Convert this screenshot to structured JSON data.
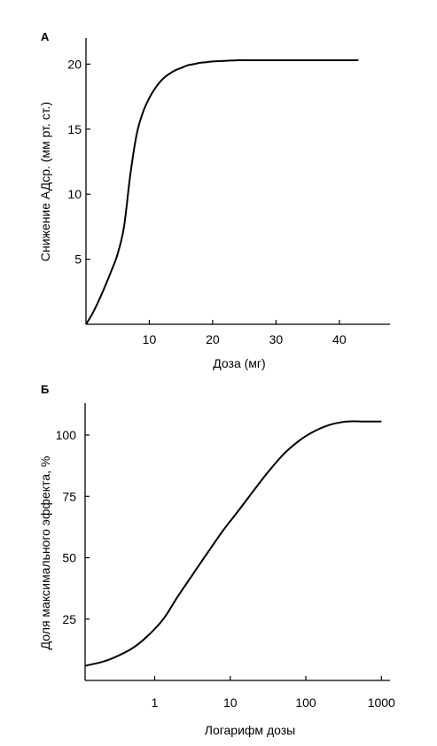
{
  "chart_data": [
    {
      "panel_label": "А",
      "type": "line",
      "xlabel": "Доза (мг)",
      "ylabel": "Снижение АДср. (мм рт. ст.)",
      "x_ticks": [
        10,
        20,
        30,
        40
      ],
      "y_ticks": [
        5,
        10,
        15,
        20
      ],
      "xlim": [
        0,
        48
      ],
      "ylim": [
        0,
        22
      ],
      "grid": false,
      "series": [
        {
          "x": [
            0,
            1,
            2,
            3,
            4,
            5,
            6,
            7,
            8,
            9,
            10,
            11,
            12,
            13,
            14,
            15,
            16,
            17,
            18,
            19,
            20,
            22,
            24,
            26,
            28,
            30,
            35,
            40,
            43
          ],
          "y": [
            0,
            0.8,
            1.8,
            2.9,
            4.1,
            5.4,
            7.5,
            11.5,
            14.6,
            16.3,
            17.4,
            18.2,
            18.8,
            19.2,
            19.5,
            19.7,
            19.9,
            20.0,
            20.1,
            20.15,
            20.2,
            20.25,
            20.3,
            20.3,
            20.3,
            20.3,
            20.3,
            20.3,
            20.3
          ]
        }
      ]
    },
    {
      "panel_label": "Б",
      "type": "line",
      "xscale": "log",
      "xlabel": "Логарифм дозы",
      "ylabel": "Доля максимального эффекта, %",
      "x_ticks": [
        "1",
        "10",
        "100",
        "1000"
      ],
      "y_ticks": [
        25,
        50,
        75,
        100
      ],
      "xlim": [
        0.12,
        1300
      ],
      "ylim": [
        0,
        113
      ],
      "grid": false,
      "series": [
        {
          "x": [
            0.12,
            0.2,
            0.3,
            0.5,
            0.8,
            1.3,
            2,
            3,
            5,
            8,
            12,
            20,
            30,
            50,
            80,
            120,
            200,
            350,
            600,
            1000
          ],
          "y": [
            6,
            7.5,
            9.5,
            13,
            18,
            25,
            34,
            42,
            52,
            61,
            68,
            77,
            84,
            92,
            97.5,
            101,
            104,
            105.5,
            105.5,
            105.5
          ]
        }
      ]
    }
  ]
}
